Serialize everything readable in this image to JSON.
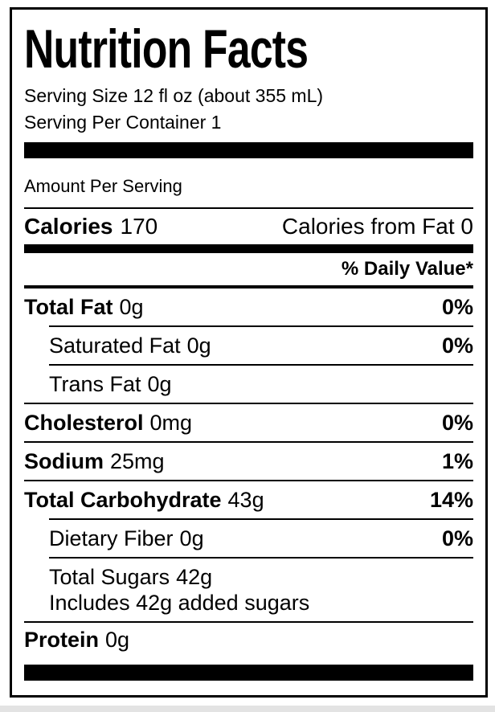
{
  "page": {
    "background": "#ffffff",
    "bottom_strip_color": "#e3e3e3"
  },
  "label": {
    "border_color": "#000000",
    "title": "Nutrition Facts",
    "serving_size": "Serving Size 12 fl oz (about 355 mL)",
    "serving_per_container": "Serving Per Container 1",
    "amount_per_serving": "Amount Per Serving",
    "calories": {
      "label": "Calories",
      "value": "170",
      "from_fat": "Calories from Fat 0"
    },
    "daily_value_header": "% Daily Value*",
    "rows": [
      {
        "name": "Total Fat",
        "amount": "0g",
        "dv": "0%"
      },
      {
        "name": "Saturated Fat",
        "amount": "0g",
        "dv": "0%"
      },
      {
        "name": "Trans Fat",
        "amount": "0g",
        "dv": ""
      },
      {
        "name": "Cholesterol",
        "amount": "0mg",
        "dv": "0%"
      },
      {
        "name": "Sodium",
        "amount": "25mg",
        "dv": "1%"
      },
      {
        "name": "Total Carbohydrate",
        "amount": "43g",
        "dv": "14%"
      },
      {
        "name": "Dietary Fiber",
        "amount": "0g",
        "dv": "0%"
      },
      {
        "name": "Total Sugars",
        "amount": "42g",
        "dv": "",
        "sub": "Includes 42g added sugars"
      },
      {
        "name": "Protein",
        "amount": "0g",
        "dv": ""
      }
    ]
  }
}
